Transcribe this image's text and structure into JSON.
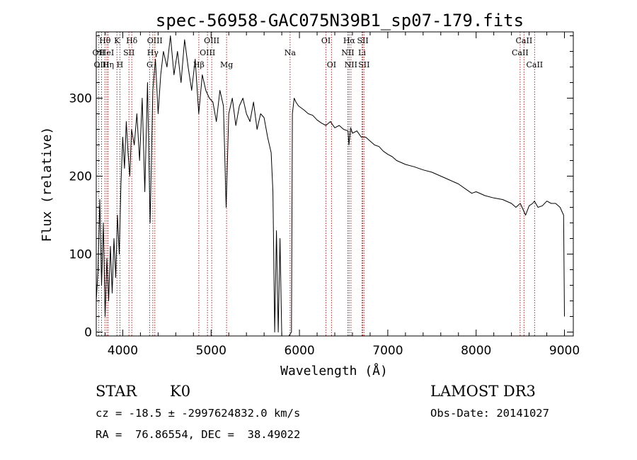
{
  "chart_data": {
    "type": "line",
    "title": "spec-56958-GAC075N39B1_sp07-179.fits",
    "xlabel": "Wavelength (Å)",
    "ylabel": "Flux (relative)",
    "xlim": [
      3700,
      9100
    ],
    "ylim": [
      -5,
      385
    ],
    "x_ticks": [
      4000,
      5000,
      6000,
      7000,
      8000,
      9000
    ],
    "x_tick_labels": [
      "4000",
      "5000",
      "6000",
      "7000",
      "8000",
      "9000"
    ],
    "y_ticks": [
      0,
      100,
      200,
      300
    ],
    "y_tick_labels": [
      "0",
      "100",
      "200",
      "300"
    ],
    "grid": false,
    "line_color": "#000000",
    "marker_color": "#a52a2a",
    "series": [
      {
        "name": "spectrum",
        "x": [
          3700,
          3720,
          3740,
          3760,
          3780,
          3800,
          3820,
          3840,
          3860,
          3880,
          3900,
          3920,
          3940,
          3960,
          3980,
          4000,
          4020,
          4040,
          4060,
          4080,
          4100,
          4130,
          4160,
          4190,
          4220,
          4250,
          4280,
          4310,
          4340,
          4370,
          4400,
          4430,
          4460,
          4500,
          4540,
          4580,
          4620,
          4660,
          4700,
          4740,
          4780,
          4820,
          4860,
          4900,
          4940,
          4980,
          5020,
          5060,
          5100,
          5140,
          5170,
          5200,
          5240,
          5280,
          5320,
          5360,
          5400,
          5440,
          5480,
          5520,
          5560,
          5600,
          5640,
          5680,
          5700,
          5720,
          5740,
          5760,
          5780,
          5800,
          5840,
          5880,
          5910,
          5920,
          5940,
          5960,
          5990,
          6050,
          6100,
          6150,
          6200,
          6250,
          6300,
          6350,
          6400,
          6450,
          6500,
          6550,
          6560,
          6580,
          6600,
          6650,
          6700,
          6750,
          6800,
          6850,
          6900,
          6950,
          7000,
          7050,
          7100,
          7200,
          7300,
          7400,
          7500,
          7600,
          7700,
          7800,
          7900,
          7950,
          8000,
          8100,
          8200,
          8300,
          8400,
          8450,
          8500,
          8540,
          8560,
          8600,
          8640,
          8660,
          8700,
          8750,
          8800,
          8850,
          8900,
          8950,
          8990,
          9000
        ],
        "y": [
          40,
          80,
          170,
          60,
          140,
          20,
          95,
          40,
          110,
          50,
          120,
          70,
          150,
          100,
          190,
          250,
          210,
          270,
          230,
          200,
          260,
          240,
          280,
          220,
          300,
          180,
          320,
          140,
          310,
          350,
          280,
          330,
          360,
          340,
          380,
          330,
          360,
          320,
          375,
          340,
          310,
          350,
          280,
          330,
          310,
          300,
          295,
          270,
          310,
          290,
          160,
          280,
          300,
          265,
          290,
          300,
          280,
          270,
          295,
          260,
          280,
          275,
          250,
          230,
          180,
          0,
          130,
          0,
          120,
          -5,
          -5,
          -5,
          0,
          280,
          300,
          295,
          290,
          285,
          280,
          278,
          272,
          268,
          265,
          270,
          262,
          265,
          260,
          258,
          240,
          262,
          255,
          258,
          250,
          250,
          245,
          240,
          238,
          232,
          228,
          225,
          220,
          215,
          212,
          208,
          205,
          200,
          195,
          190,
          182,
          178,
          180,
          175,
          172,
          170,
          165,
          160,
          165,
          155,
          150,
          162,
          165,
          168,
          160,
          162,
          168,
          165,
          165,
          160,
          150,
          20
        ]
      }
    ],
    "line_markers": [
      {
        "label": "Hθ",
        "x": 3798,
        "row": 1
      },
      {
        "label": "OII",
        "x": 3727,
        "row": 2
      },
      {
        "label": "OIII",
        "x": 3760,
        "row": 3
      },
      {
        "label": "HeI",
        "x": 3820,
        "row": 2
      },
      {
        "label": "Hη",
        "x": 3835,
        "row": 3
      },
      {
        "label": "K",
        "x": 3934,
        "row": 1
      },
      {
        "label": "Hδ",
        "x": 4102,
        "row": 1
      },
      {
        "label": "SII",
        "x": 4070,
        "row": 2
      },
      {
        "label": "H",
        "x": 3968,
        "row": 3
      },
      {
        "label": "OIII",
        "x": 4363,
        "row": 1
      },
      {
        "label": "Hγ",
        "x": 4340,
        "row": 2
      },
      {
        "label": "G",
        "x": 4304,
        "row": 3
      },
      {
        "label": "OIII",
        "x": 5007,
        "row": 1
      },
      {
        "label": "OIII",
        "x": 4959,
        "row": 2
      },
      {
        "label": "Hβ",
        "x": 4861,
        "row": 3
      },
      {
        "label": "Mg",
        "x": 5175,
        "row": 3
      },
      {
        "label": "Na",
        "x": 5894,
        "row": 2
      },
      {
        "label": "OI",
        "x": 6300,
        "row": 1
      },
      {
        "label": "OI",
        "x": 6363,
        "row": 3
      },
      {
        "label": "Hα",
        "x": 6563,
        "row": 1
      },
      {
        "label": "NII",
        "x": 6548,
        "row": 2
      },
      {
        "label": "NII",
        "x": 6583,
        "row": 3
      },
      {
        "label": "SII",
        "x": 6717,
        "row": 1
      },
      {
        "label": "Li",
        "x": 6708,
        "row": 2
      },
      {
        "label": "SII",
        "x": 6731,
        "row": 3
      },
      {
        "label": "CaII",
        "x": 8542,
        "row": 1
      },
      {
        "label": "CaII",
        "x": 8498,
        "row": 2
      },
      {
        "label": "CaII",
        "x": 8662,
        "row": 3
      }
    ]
  },
  "info": {
    "object_class": "STAR",
    "subclass": "K0",
    "survey": "LAMOST DR3",
    "redshift_line": "cz = -18.5 ± -2997624832.0 km/s",
    "obs_date_line": "Obs-Date: 20141027",
    "coords_line": "RA =  76.86554, DEC =  38.49022"
  }
}
